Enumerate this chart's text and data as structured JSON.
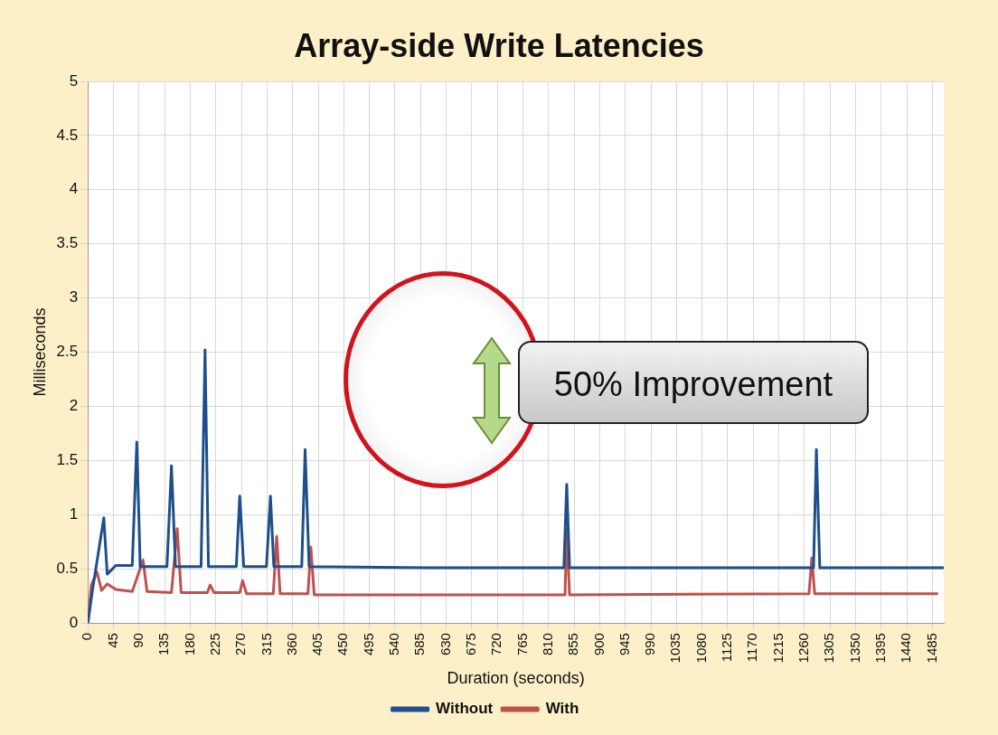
{
  "chart_data": {
    "type": "line",
    "title": "Array-side Write Latencies",
    "xlabel": "Duration (seconds)",
    "ylabel": "Milliseconds",
    "xlim": [
      0,
      1505
    ],
    "xticks": [
      0,
      45,
      90,
      135,
      180,
      225,
      270,
      315,
      360,
      405,
      450,
      495,
      540,
      585,
      630,
      675,
      720,
      765,
      810,
      855,
      900,
      945,
      990,
      1035,
      1080,
      1125,
      1170,
      1215,
      1260,
      1305,
      1350,
      1395,
      1440,
      1485
    ],
    "ylim": [
      0,
      5
    ],
    "yticks": [
      0,
      0.5,
      1,
      1.5,
      2,
      2.5,
      3,
      3.5,
      4,
      4.5,
      5
    ],
    "grid": true,
    "legend": "bottom",
    "marker": "none",
    "line_style": "solid",
    "annotations": [
      "50% Improvement"
    ],
    "series": [
      {
        "name": "Without",
        "color": "#1f4e8c",
        "x": [
          0,
          8,
          28,
          34,
          49,
          78,
          86,
          92,
          139,
          147,
          154,
          199,
          206,
          212,
          261,
          267,
          274,
          314,
          321,
          327,
          376,
          382,
          389,
          600,
          837,
          842,
          847,
          1276,
          1281,
          1287,
          1505
        ],
        "values": [
          0,
          0.3,
          0.97,
          0.45,
          0.53,
          0.53,
          1.67,
          0.52,
          0.52,
          1.45,
          0.52,
          0.52,
          2.52,
          0.52,
          0.52,
          1.17,
          0.52,
          0.52,
          1.17,
          0.52,
          0.52,
          1.6,
          0.52,
          0.51,
          0.51,
          1.28,
          0.51,
          0.51,
          1.6,
          0.51,
          0.51
        ]
      },
      {
        "name": "With",
        "color": "#c0504d",
        "x": [
          0,
          6,
          16,
          24,
          34,
          49,
          78,
          97,
          104,
          147,
          157,
          164,
          210,
          215,
          222,
          267,
          272,
          279,
          326,
          332,
          338,
          387,
          392,
          398,
          839,
          842,
          847,
          1268,
          1273,
          1278,
          1495
        ],
        "values": [
          0,
          0.35,
          0.47,
          0.3,
          0.36,
          0.31,
          0.29,
          0.58,
          0.29,
          0.28,
          0.87,
          0.28,
          0.28,
          0.35,
          0.28,
          0.28,
          0.39,
          0.27,
          0.27,
          0.8,
          0.27,
          0.27,
          0.7,
          0.26,
          0.26,
          0.86,
          0.26,
          0.27,
          0.6,
          0.27,
          0.27
        ]
      }
    ]
  }
}
